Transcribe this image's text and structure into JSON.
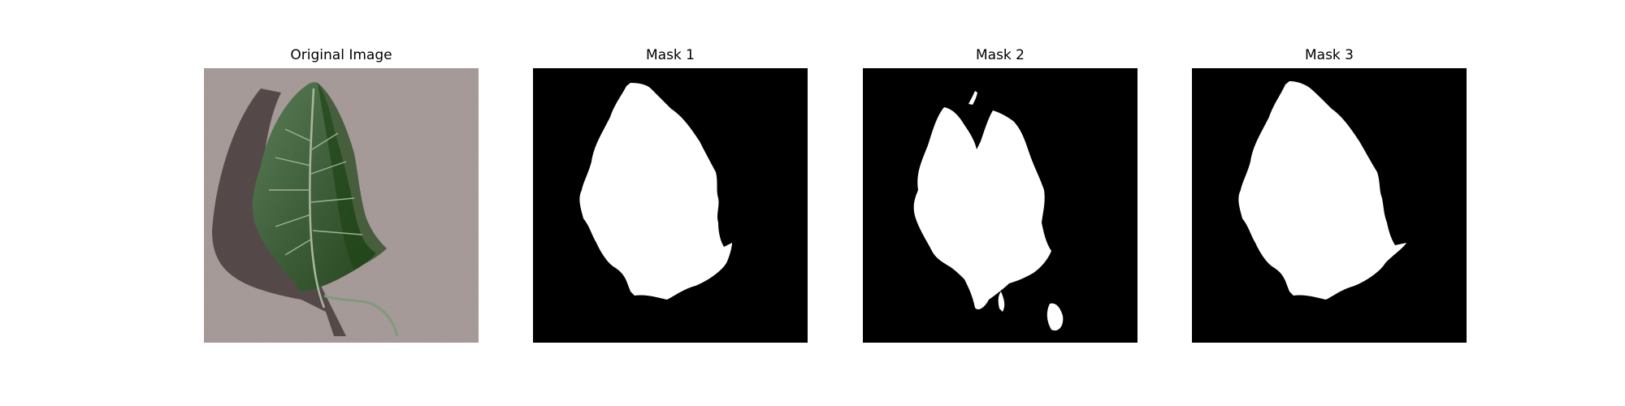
{
  "figure": {
    "panels": [
      {
        "title": "Original Image",
        "content": "photo of a green leaf on a gray textured surface"
      },
      {
        "title": "Mask 1",
        "content": "binary segmentation mask (white leaf on black)"
      },
      {
        "title": "Mask 2",
        "content": "binary segmentation mask (white leaf on black)"
      },
      {
        "title": "Mask 3",
        "content": "binary segmentation mask (white leaf on black)"
      }
    ],
    "colors": {
      "background": "#ffffff",
      "mask_fg": "#ffffff",
      "mask_bg": "#000000",
      "leaf": "#3f5f3a",
      "surface": "#a89c9a"
    }
  }
}
